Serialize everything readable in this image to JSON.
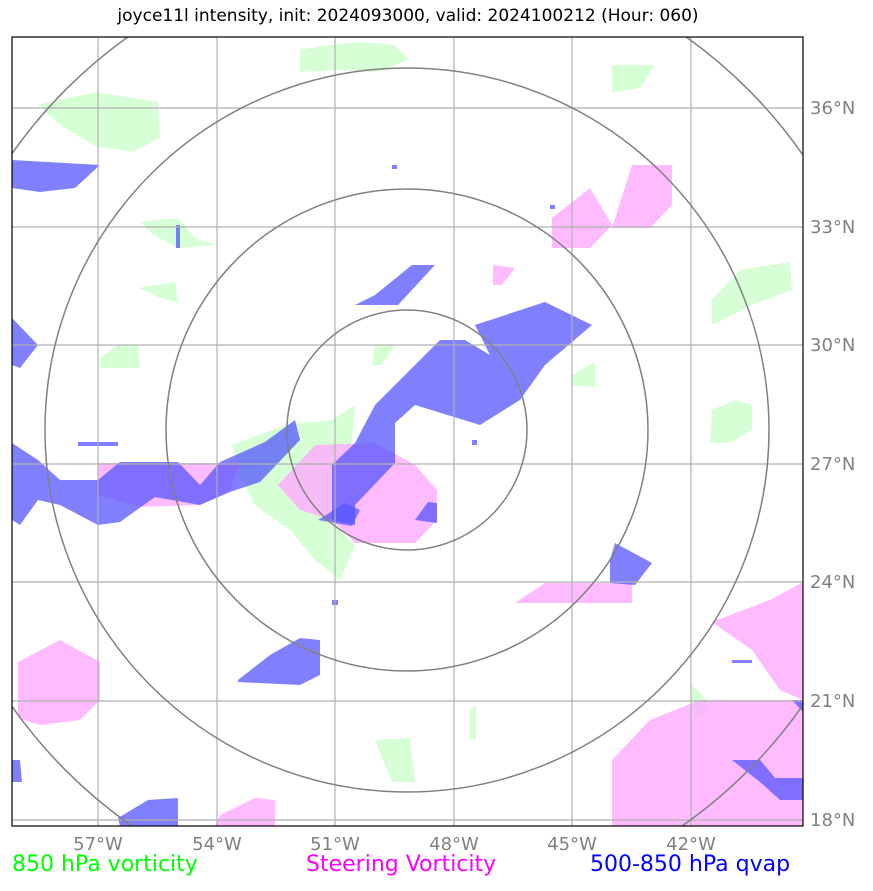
{
  "title": "joyce11l intensity, init: 2024093000, valid: 2024100212 (Hour: 060)",
  "axes": {
    "lon_labels": [
      "57°W",
      "54°W",
      "51°W",
      "48°W",
      "45°W",
      "42°W"
    ],
    "lat_labels": [
      "36°N",
      "33°N",
      "30°N",
      "27°N",
      "24°N",
      "21°N",
      "18°N"
    ]
  },
  "legend": {
    "left": {
      "label": "850 hPa vorticity",
      "color": "#00ff00"
    },
    "center": {
      "label": "Steering Vorticity",
      "color": "#ff00ff"
    },
    "right": {
      "label": "500-850 hPa qvap",
      "color": "#0000ff"
    }
  },
  "colors": {
    "vort850_fill": "#ccffcc",
    "steering_fill": "#ffaaff",
    "qvap_fill": "#5555ff",
    "gridline": "#b0b0b0",
    "range_ring": "#808080",
    "tick_label": "#808080"
  }
}
